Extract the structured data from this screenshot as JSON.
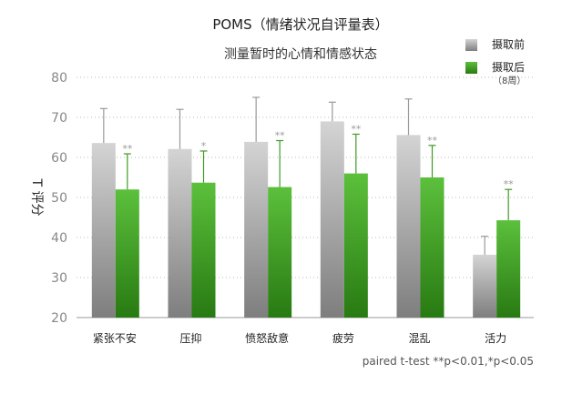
{
  "chart_data": {
    "type": "bar",
    "title": "POMS（情绪状况自评量表）",
    "subtitle": "测量暂时的心情和情感状态",
    "ylabel": "T 评分",
    "xlabel": "",
    "ylim": [
      20,
      80
    ],
    "yticks": [
      20,
      30,
      40,
      50,
      60,
      70,
      80
    ],
    "grid": "dotted horizontal",
    "legend_position": "top-right",
    "categories": [
      "紧张不安",
      "压抑",
      "愤怒敌意",
      "疲劳",
      "混乱",
      "活力"
    ],
    "series": [
      {
        "name": "摄取前",
        "color": "#a8a8a8",
        "values": [
          63.6,
          62.1,
          63.9,
          69.0,
          65.6,
          35.7
        ],
        "error_upper": [
          72.2,
          72.0,
          75.0,
          73.8,
          74.6,
          40.3
        ]
      },
      {
        "name": "摄取后",
        "name_note": "（8周）",
        "color": "#4caf2e",
        "values": [
          52.0,
          53.7,
          52.6,
          56.0,
          55.0,
          44.3
        ],
        "error_upper": [
          60.9,
          61.6,
          64.2,
          65.8,
          63.0,
          52.0
        ],
        "significance": [
          "**",
          "*",
          "**",
          "**",
          "**",
          "**"
        ]
      }
    ],
    "note": "paired t-test **p<0.01,*p<0.05"
  }
}
